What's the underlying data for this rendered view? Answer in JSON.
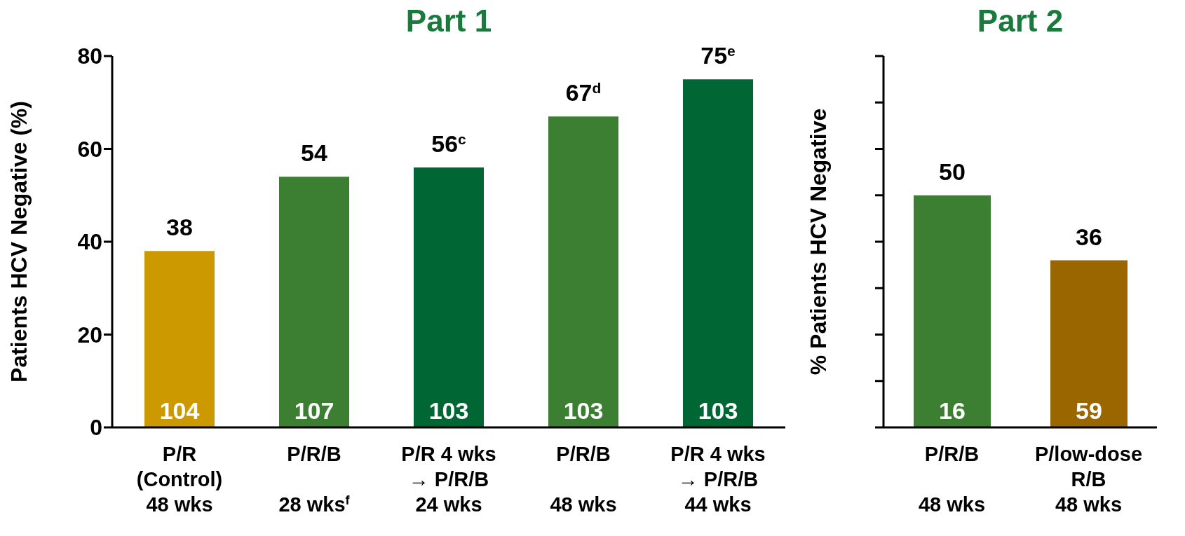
{
  "chart_data": [
    {
      "type": "bar",
      "title": "Part 1",
      "ylabel": "Patients HCV Negative (%)",
      "categories": [
        "P/R\n(Control)\n48 wks",
        "P/R/B\n\n28 wks$^{f}$",
        "P/R 4 wks\n→ P/R/B\n24 wks",
        "P/R/B\n\n48 wks",
        "P/R 4 wks\n→ P/R/B\n44 wks"
      ],
      "values": [
        38,
        54,
        56,
        67,
        75
      ],
      "colors": [
        "#cc9900",
        "#3d7f32",
        "#006633",
        "#3d7f32",
        "#006633"
      ],
      "value_labels": [
        "38",
        "54",
        "56$^{c}$",
        "67$^{d}$",
        "75$^{e}$"
      ],
      "ylim": [
        0,
        80
      ],
      "yticks": [
        0,
        20,
        40,
        60,
        80
      ],
      "annotations": [
        "104",
        "107",
        "103",
        "103",
        "103"
      ]
    },
    {
      "type": "bar",
      "title": "Part 2",
      "ylabel": "% Patients HCV Negative",
      "categories": [
        "P/R/B\n\n48 wks",
        "P/low-dose\nR/B\n48 wks"
      ],
      "values": [
        50,
        36
      ],
      "colors": [
        "#3d7f32",
        "#996600"
      ],
      "data_labels": true,
      "ylim": [
        0,
        80
      ],
      "yticks": [
        {
          "value": 0,
          "label": null
        },
        {
          "value": 10,
          "label": null
        },
        {
          "value": 20,
          "label": null
        },
        {
          "value": 30,
          "label": null
        },
        {
          "value": 40,
          "label": null
        },
        {
          "value": 50,
          "label": null
        },
        {
          "value": 60,
          "label": null
        },
        {
          "value": 70,
          "label": null
        },
        {
          "value": 80,
          "label": null
        }
      ],
      "tick_labels": "x",
      "annotations": [
        "16",
        "59"
      ]
    }
  ]
}
